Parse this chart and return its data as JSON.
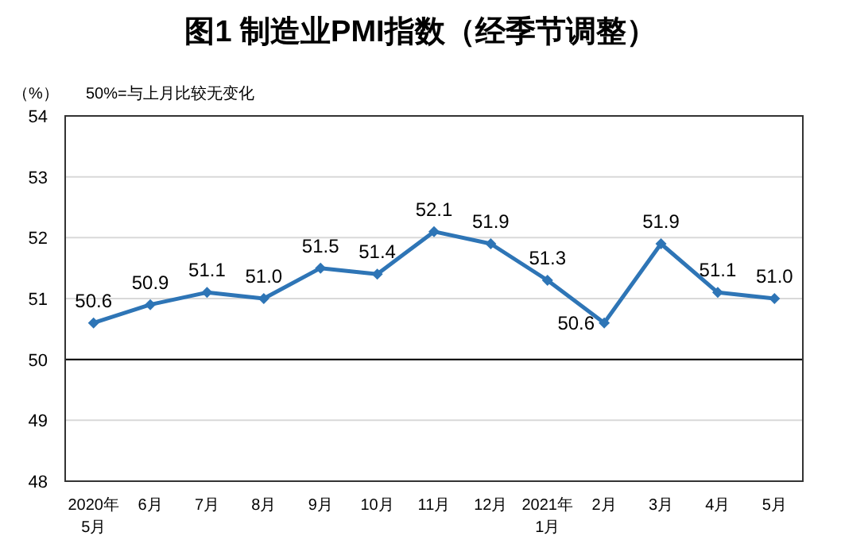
{
  "chart_data": {
    "type": "line",
    "title": "图1 制造业PMI指数（经季节调整）",
    "ylabel": "（%）",
    "annotations": [
      "50%=与上月比较无变化"
    ],
    "categories": [
      "2020年\n5月",
      "6月",
      "7月",
      "8月",
      "9月",
      "10月",
      "11月",
      "12月",
      "2021年\n1月",
      "2月",
      "3月",
      "4月",
      "5月"
    ],
    "series": [
      {
        "color": "#2e75b6",
        "values": [
          50.6,
          50.9,
          51.1,
          51.0,
          51.5,
          51.4,
          52.1,
          51.9,
          51.3,
          50.6,
          51.9,
          51.1,
          51.0
        ],
        "value_labels": [
          "50.6",
          "50.9",
          "51.1",
          "51.0",
          "51.5",
          "51.4",
          "52.1",
          "51.9",
          "51.3",
          "50.6",
          "51.9",
          "51.1",
          "51.0"
        ]
      }
    ],
    "ylim": [
      48,
      54
    ],
    "yticks": [
      48,
      49,
      50,
      51,
      52,
      53,
      54
    ],
    "grid": "y",
    "marker": "diamond",
    "ref_lines": [
      {
        "axis": "y",
        "value": 50,
        "color": "#000000"
      }
    ]
  }
}
